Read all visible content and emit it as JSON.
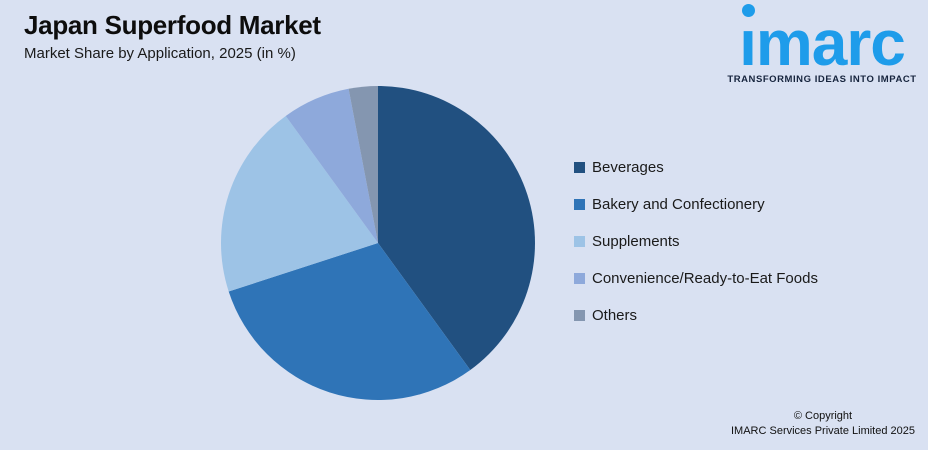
{
  "header": {
    "title": "Japan Superfood Market",
    "subtitle": "Market Share by Application, 2025 (in %)"
  },
  "logo": {
    "wordmark": "imarc",
    "tagline": "TRANSFORMING IDEAS INTO IMPACT",
    "brand_color": "#1E9CEA"
  },
  "chart_data": {
    "type": "pie",
    "title": "Japan Superfood Market",
    "subtitle": "Market Share by Application, 2025 (in %)",
    "unit": "%",
    "start_angle_deg": 0,
    "direction": "clockwise",
    "legend_position": "right",
    "labels": [
      "Beverages",
      "Bakery and Confectionery",
      "Supplements",
      "Convenience/Ready-to-Eat Foods",
      "Others"
    ],
    "values": [
      40,
      30,
      20,
      7,
      3
    ],
    "colors": [
      "#215080",
      "#2F74B7",
      "#9DC3E6",
      "#8EA9DB",
      "#8496B0"
    ],
    "background_color": "#D9E1F2"
  },
  "footer": {
    "copyright_line1": "© Copyright",
    "copyright_line2": "IMARC Services Private Limited 2025"
  }
}
